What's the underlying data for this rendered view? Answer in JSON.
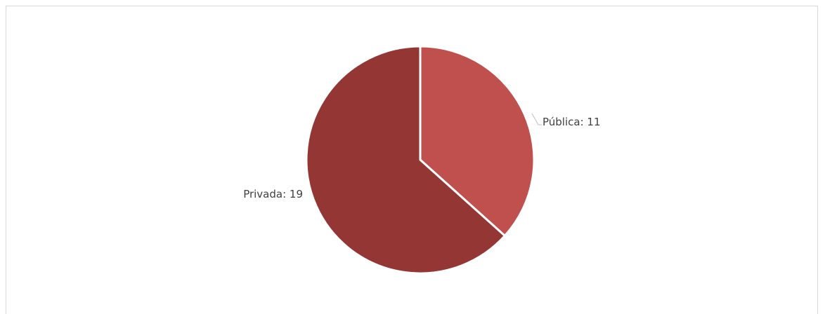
{
  "chart_data": {
    "type": "pie",
    "title": "",
    "categories": [
      "Pública",
      "Privada"
    ],
    "values": [
      11,
      19
    ],
    "colors": [
      "#c0504d",
      "#943634"
    ],
    "data_labels": [
      "Pública: 11",
      "Privada: 19"
    ],
    "legend": "none",
    "grid": false
  }
}
